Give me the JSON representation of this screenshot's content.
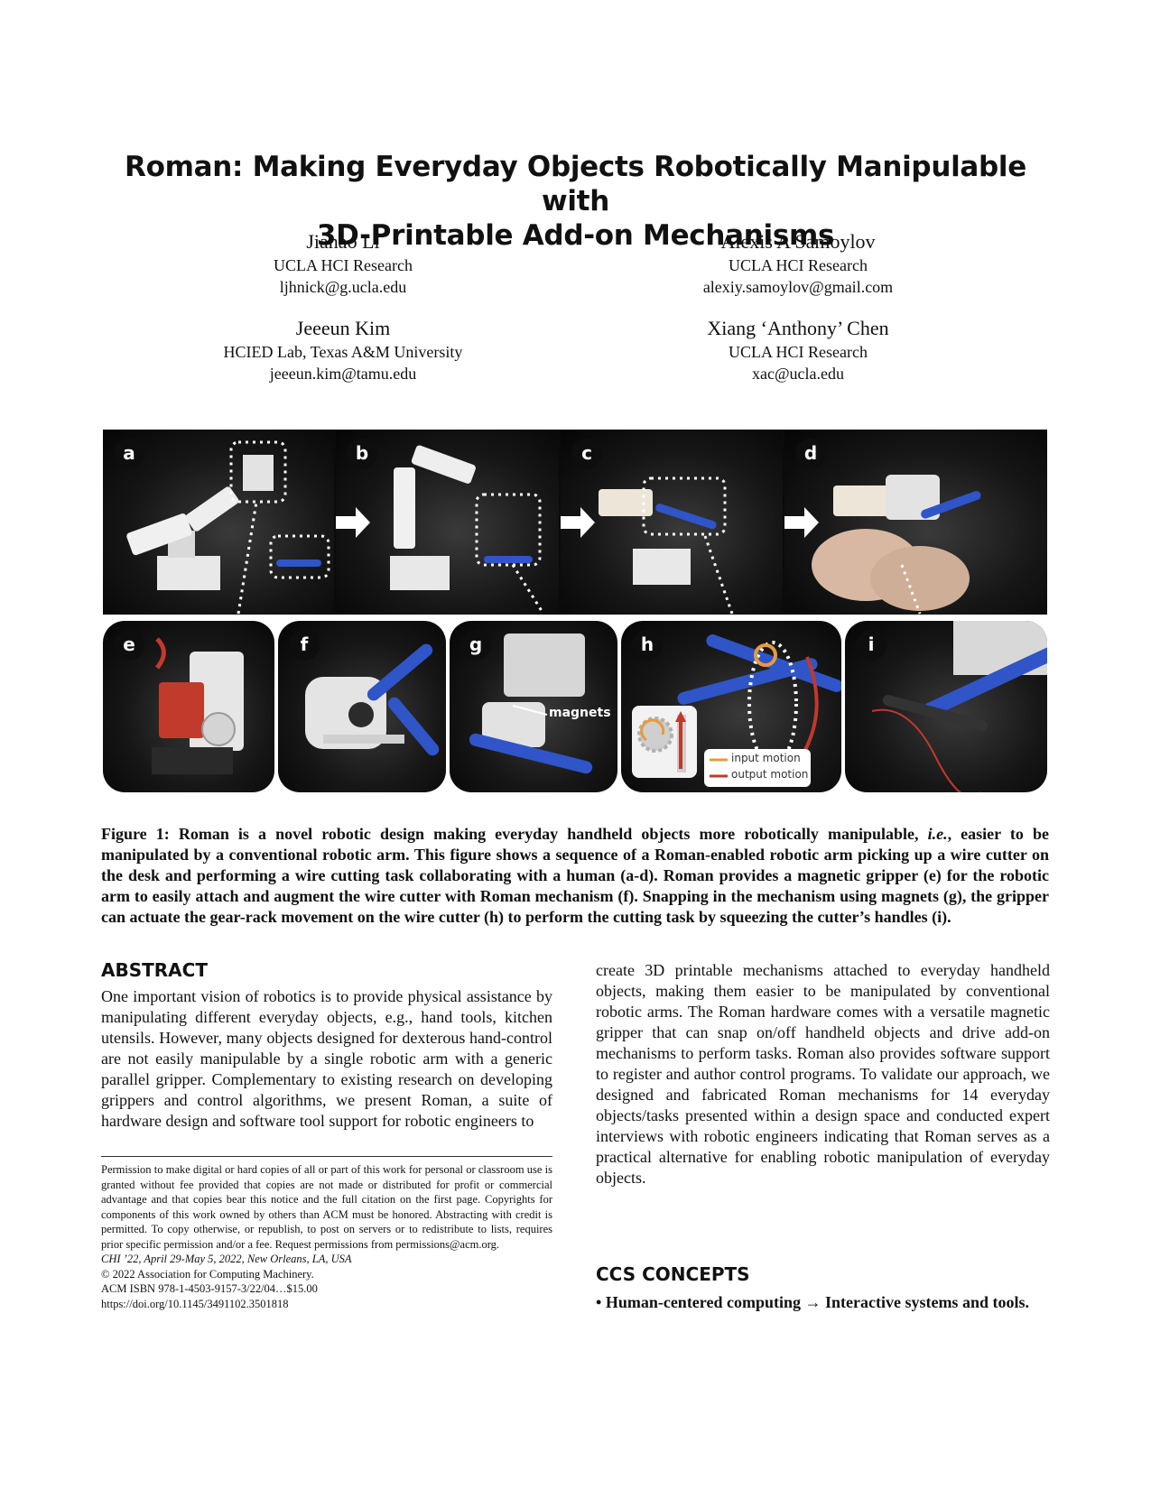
{
  "paper": {
    "title_line1": "Roman: Making Everyday Objects Robotically Manipulable with",
    "title_line2": "3D-Printable Add-on Mechanisms"
  },
  "authors": [
    {
      "name": "Jiahao Li",
      "affiliation": "UCLA HCI Research",
      "email": "ljhnick@g.ucla.edu"
    },
    {
      "name": "Alexis A Samoylov",
      "affiliation": "UCLA HCI Research",
      "email": "alexiy.samoylov@gmail.com"
    },
    {
      "name": "Jeeeun Kim",
      "affiliation": "HCIED Lab, Texas A&M University",
      "email": "jeeeun.kim@tamu.edu"
    },
    {
      "name": "Xiang ‘Anthony’ Chen",
      "affiliation": "UCLA HCI Research",
      "email": "xac@ucla.edu"
    }
  ],
  "figure": {
    "panel_labels": [
      "a",
      "b",
      "c",
      "d",
      "e",
      "f",
      "g",
      "h",
      "i"
    ],
    "magnets_label": "magnets",
    "legend_input": "input motion",
    "legend_output": "output motion",
    "colors": {
      "input_motion": "#e89a3c",
      "output_motion": "#c0392b",
      "gripper_blue": "#2f55c8"
    }
  },
  "caption": {
    "lead": "Figure 1: Roman is a novel robotic design making everyday handheld objects more robotically manipulable, ",
    "ie": "i.e.",
    "rest": ", easier to be manipulated by a conventional robotic arm. This figure shows a sequence of a Roman-enabled robotic arm picking up a wire cutter on the desk and performing a wire cutting task collaborating with a human (a-d). Roman provides a magnetic gripper (e) for the robotic arm to easily attach and augment the wire cutter with Roman mechanism (f). Snapping in the mechanism using magnets (g), the gripper can actuate the gear-rack movement on the wire cutter (h) to perform the cutting task by squeezing the cutter’s handles (i)."
  },
  "abstract": {
    "heading": "ABSTRACT",
    "left_text": "One important vision of robotics is to provide physical assistance by manipulating different everyday objects, e.g., hand tools, kitchen utensils. However, many objects designed for dexterous hand-control are not easily manipulable by a single robotic arm with a generic parallel gripper. Complementary to existing research on developing grippers and control algorithms, we present Roman, a suite of hardware design and software tool support for robotic engineers to",
    "right_text": "create 3D printable mechanisms attached to everyday handheld objects, making them easier to be manipulated by conventional robotic arms. The Roman hardware comes with a versatile magnetic gripper that can snap on/off handheld objects and drive add-on mechanisms to perform tasks. Roman also provides software support to register and author control programs. To validate our approach, we designed and fabricated Roman mechanisms for 14 everyday objects/tasks presented within a design space and conducted expert interviews with robotic engineers indicating that Roman serves as a practical alternative for enabling robotic manipulation of everyday objects."
  },
  "permission": {
    "text": "Permission to make digital or hard copies of all or part of this work for personal or classroom use is granted without fee provided that copies are not made or distributed for profit or commercial advantage and that copies bear this notice and the full citation on the first page. Copyrights for components of this work owned by others than ACM must be honored. Abstracting with credit is permitted. To copy otherwise, or republish, to post on servers or to redistribute to lists, requires prior specific permission and/or a fee. Request permissions from permissions@acm.org.",
    "conference": "CHI ’22, April 29-May 5, 2022, New Orleans, LA, USA",
    "copyright": "© 2022 Association for Computing Machinery.",
    "isbn": "ACM ISBN 978-1-4503-9157-3/22/04…$15.00",
    "doi": "https://doi.org/10.1145/3491102.3501818"
  },
  "ccs": {
    "heading": "CCS CONCEPTS",
    "item_bullet": "• ",
    "item_main": "Human-centered computing",
    "item_arrow": " → ",
    "item_rest": "Interactive systems and tools",
    "item_end": "."
  }
}
